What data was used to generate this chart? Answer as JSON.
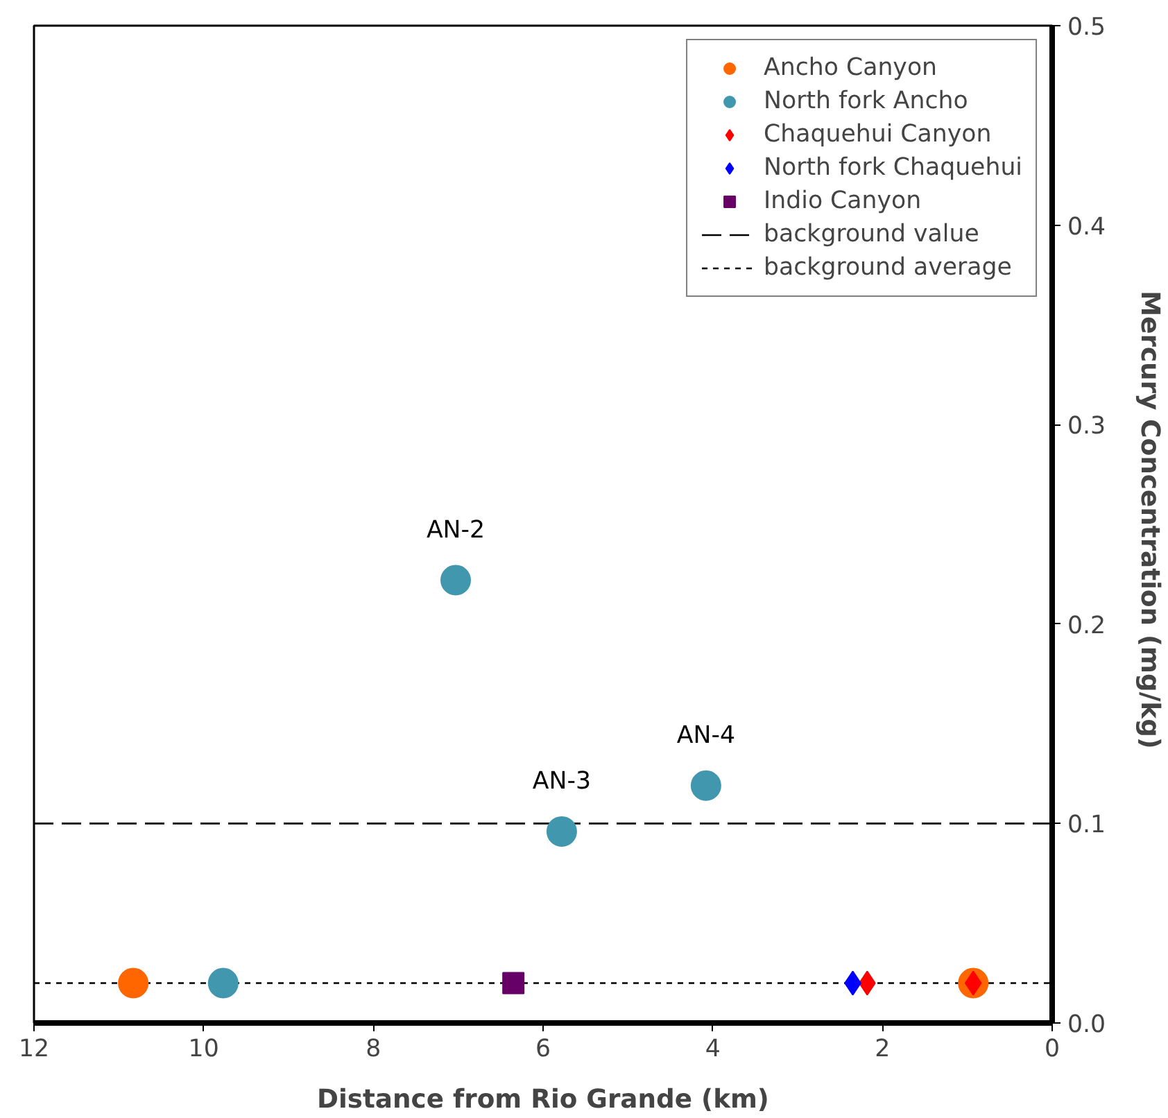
{
  "chart_data": {
    "type": "scatter",
    "xlabel": "Distance from Rio Grande (km)",
    "ylabel": "Mercury Concentration  (mg/kg)",
    "xlim": [
      12,
      0
    ],
    "xticks": [
      12,
      10,
      8,
      6,
      4,
      2,
      0
    ],
    "ylim": [
      0,
      0.5
    ],
    "yticks": [
      {
        "value": 0,
        "label": "0.0"
      },
      0.1,
      0.2,
      0.3,
      0.4,
      0.5
    ],
    "series": [
      {
        "name": "Ancho Canyon",
        "color": "#ff6600",
        "marker": "circle",
        "x": [
          10.83,
          0.93
        ],
        "values": [
          0.02,
          0.02
        ]
      },
      {
        "name": "North fork Ancho",
        "color": "#4197ae",
        "marker": "circle",
        "x": [
          9.77,
          7.03,
          5.78,
          4.08
        ],
        "values": [
          0.02,
          0.222,
          0.096,
          0.119
        ]
      },
      {
        "name": "Chaquehui Canyon",
        "color": "#ff0000",
        "marker": "diamond",
        "x": [
          2.18,
          0.93
        ],
        "values": [
          0.02,
          0.02
        ]
      },
      {
        "name": "North fork Chaquehui",
        "color": "#0000ff",
        "marker": "diamond",
        "x": [
          2.35
        ],
        "values": [
          0.02
        ]
      },
      {
        "name": "Indio Canyon",
        "color": "#660066",
        "marker": "square",
        "x": [
          6.35
        ],
        "values": [
          0.02
        ]
      }
    ],
    "ref_lines": [
      {
        "axis": "y",
        "value": 0.1,
        "label": "background value",
        "color": "#000000",
        "line_style": "dashed"
      },
      {
        "axis": "y",
        "value": 0.02,
        "label": "background average",
        "color": "#000000",
        "line_style": "dotted"
      }
    ],
    "annotations": [
      {
        "text": "AN-2",
        "x": 7.03,
        "y": 0.222
      },
      {
        "text": "AN-3",
        "x": 5.78,
        "y": 0.096
      },
      {
        "text": "AN-4",
        "x": 4.08,
        "y": 0.119
      }
    ],
    "legend": "top right",
    "grid": false
  }
}
